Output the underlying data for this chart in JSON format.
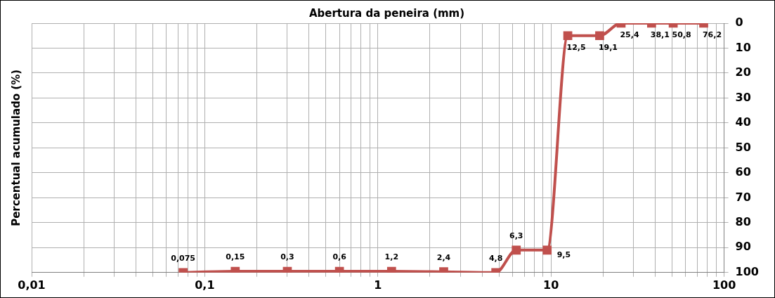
{
  "chart_data": {
    "type": "line",
    "title": "Abertura da peneira (mm)",
    "ylabel": "Percentual acumulado (%)",
    "x": [
      0.075,
      0.15,
      0.3,
      0.6,
      1.2,
      2.4,
      4.8,
      6.3,
      9.5,
      12.5,
      19.1,
      25.4,
      38.1,
      50.8,
      76.2
    ],
    "series": [
      {
        "color": "#c0504d",
        "values": [
          100,
          99.5,
          99.5,
          99.5,
          99.5,
          99.7,
          100,
          91,
          91,
          5,
          5,
          0,
          0,
          0,
          0
        ]
      }
    ],
    "log": "x",
    "xlim": [
      0.01,
      100
    ],
    "xticks": [
      {
        "value": 0.01,
        "label": "0,01"
      },
      {
        "value": 0.02,
        "label": null
      },
      {
        "value": 0.03,
        "label": null
      },
      {
        "value": 0.04,
        "label": null
      },
      {
        "value": 0.05,
        "label": null
      },
      {
        "value": 0.06,
        "label": null
      },
      {
        "value": 0.07,
        "label": null
      },
      {
        "value": 0.08,
        "label": null
      },
      {
        "value": 0.09,
        "label": null
      },
      {
        "value": 0.1,
        "label": "0,1"
      },
      {
        "value": 0.2,
        "label": null
      },
      {
        "value": 0.3,
        "label": null
      },
      {
        "value": 0.4,
        "label": null
      },
      {
        "value": 0.5,
        "label": null
      },
      {
        "value": 0.6,
        "label": null
      },
      {
        "value": 0.7,
        "label": null
      },
      {
        "value": 0.8,
        "label": null
      },
      {
        "value": 0.9,
        "label": null
      },
      1,
      {
        "value": 2,
        "label": null
      },
      {
        "value": 3,
        "label": null
      },
      {
        "value": 4,
        "label": null
      },
      {
        "value": 5,
        "label": null
      },
      {
        "value": 6,
        "label": null
      },
      {
        "value": 7,
        "label": null
      },
      {
        "value": 8,
        "label": null
      },
      {
        "value": 9,
        "label": null
      },
      10,
      {
        "value": 20,
        "label": null
      },
      {
        "value": 30,
        "label": null
      },
      {
        "value": 40,
        "label": null
      },
      {
        "value": 50,
        "label": null
      },
      {
        "value": 60,
        "label": null
      },
      {
        "value": 70,
        "label": null
      },
      {
        "value": 80,
        "label": null
      },
      {
        "value": 90,
        "label": null
      },
      100
    ],
    "ylim": [
      100,
      0
    ],
    "yticks": [
      0,
      10,
      20,
      30,
      40,
      50,
      60,
      70,
      80,
      90,
      100
    ],
    "grid": true,
    "legend": false,
    "marker": "square",
    "line_style": "solid",
    "annotations": [
      {
        "text": "0,075",
        "x": 0.075,
        "y": 100
      },
      {
        "text": "0,15",
        "x": 0.15,
        "y": 99.5
      },
      {
        "text": "0,3",
        "x": 0.3,
        "y": 99.5
      },
      {
        "text": "0,6",
        "x": 0.6,
        "y": 99.5
      },
      {
        "text": "1,2",
        "x": 1.2,
        "y": 99.5
      },
      {
        "text": "2,4",
        "x": 2.4,
        "y": 99.7
      },
      {
        "text": "4,8",
        "x": 4.8,
        "y": 100
      },
      {
        "text": "6,3",
        "x": 6.3,
        "y": 91
      },
      {
        "text": "9,5",
        "x": 9.5,
        "y": 91
      },
      {
        "text": "12,5",
        "x": 12.5,
        "y": 5
      },
      {
        "text": "19,1",
        "x": 19.1,
        "y": 5
      },
      {
        "text": "25,4",
        "x": 25.4,
        "y": 0
      },
      {
        "text": "38,1",
        "x": 38.1,
        "y": 0
      },
      {
        "text": "50,8",
        "x": 50.8,
        "y": 0
      },
      {
        "text": "76,2",
        "x": 76.2,
        "y": 0
      }
    ]
  }
}
